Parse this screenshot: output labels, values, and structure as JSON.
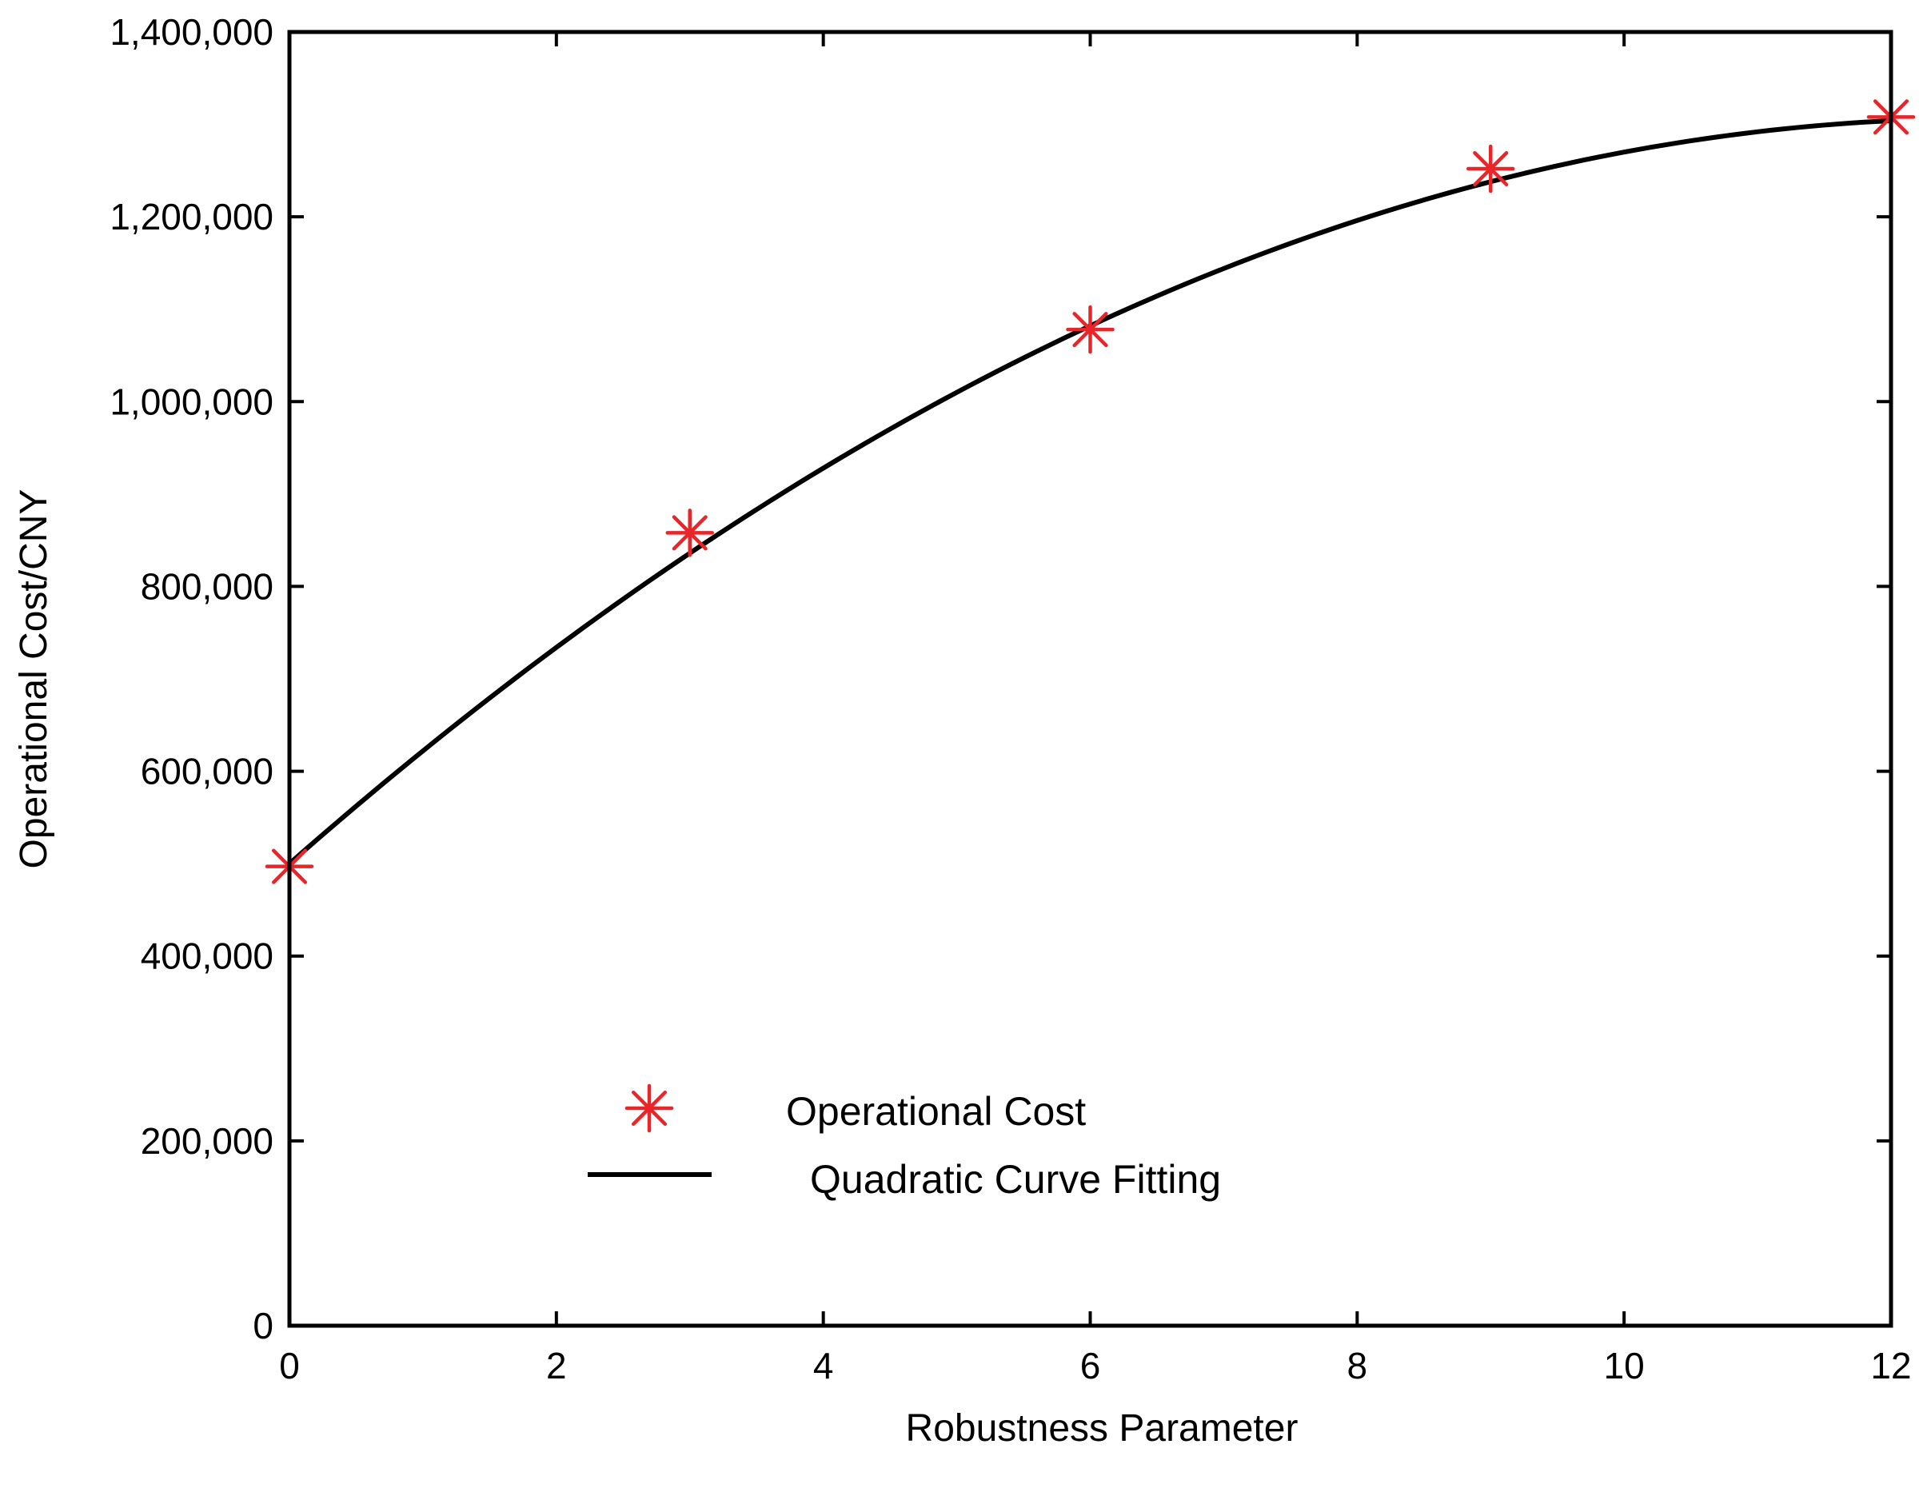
{
  "chart_data": {
    "type": "scatter",
    "title": "",
    "xlabel": "Robustness Parameter",
    "ylabel": "Operational Cost/CNY",
    "xlim": [
      0,
      12
    ],
    "ylim": [
      0,
      1400000
    ],
    "x_ticks": [
      0,
      2,
      4,
      6,
      8,
      10,
      12
    ],
    "y_ticks": [
      0,
      200000,
      400000,
      600000,
      800000,
      1000000,
      1200000,
      1400000
    ],
    "x_tick_labels": [
      "0",
      "2",
      "4",
      "6",
      "8",
      "10",
      "12"
    ],
    "y_tick_labels": [
      "0",
      "200,000",
      "400,000",
      "600,000",
      "800,000",
      "1,000,000",
      "1,200,000",
      "1,400,000"
    ],
    "grid": false,
    "legend_position": "lower-center",
    "series": [
      {
        "name": "Operational Cost",
        "kind": "scatter",
        "marker": "asterisk",
        "color": "#e8262a",
        "x": [
          0,
          3,
          6,
          9,
          12
        ],
        "y": [
          497000,
          858000,
          1078000,
          1252000,
          1308000
        ]
      },
      {
        "name": "Quadratic Curve Fitting",
        "kind": "line",
        "color": "#000000",
        "coefficients": {
          "a": -5000,
          "b": 127000,
          "c": 500000
        }
      }
    ]
  }
}
